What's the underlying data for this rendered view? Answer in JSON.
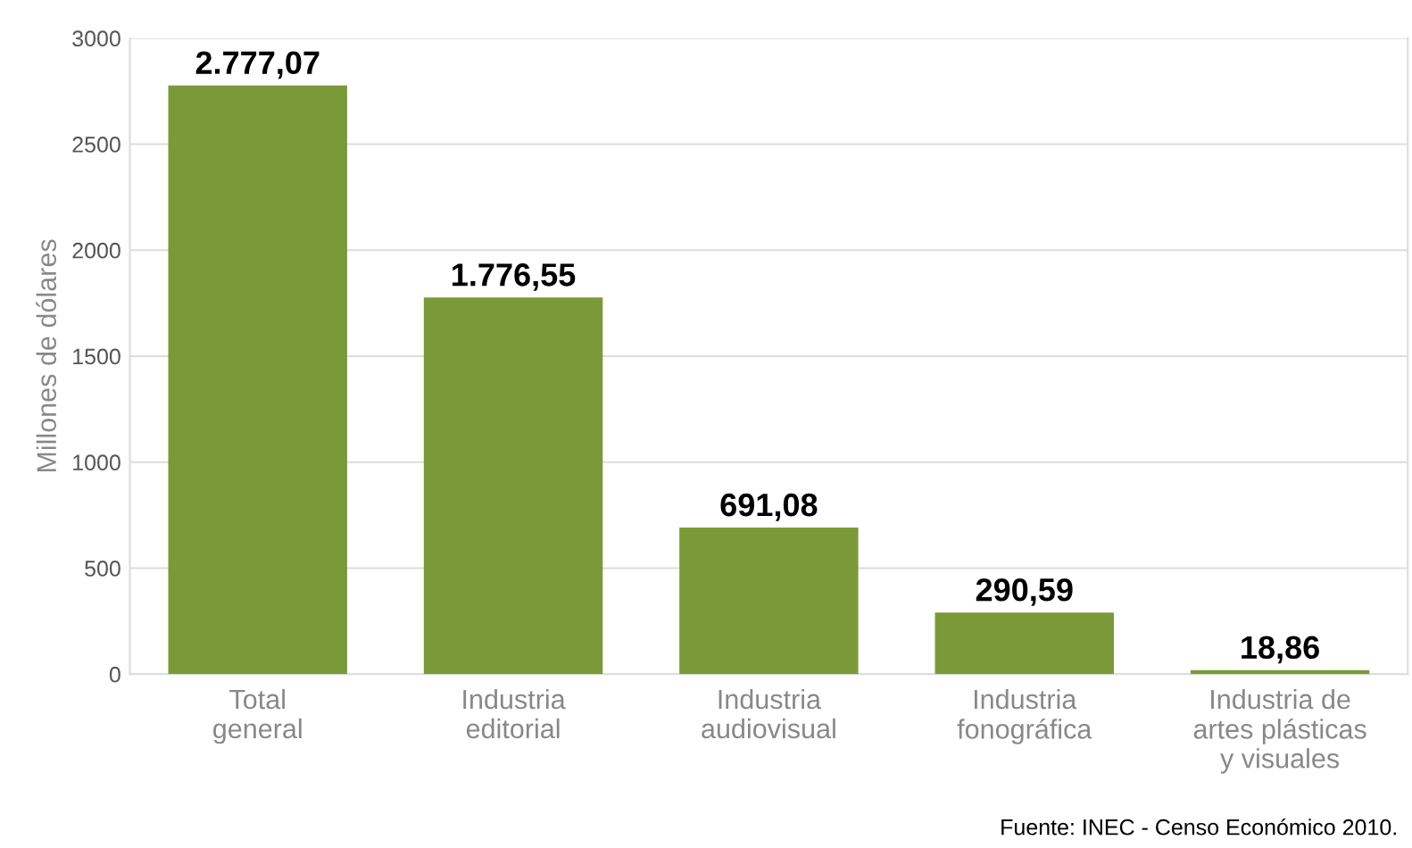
{
  "chart_data": {
    "type": "bar",
    "ylabel": "Millones de dólares",
    "categories": [
      "Total\ngeneral",
      "Industria\neditorial",
      "Industria\naudiovisual",
      "Industria\nfonográfica",
      "Industria de\nartes plásticas\ny visuales"
    ],
    "values": [
      2777.07,
      1776.55,
      691.08,
      290.59,
      18.86
    ],
    "value_labels": [
      "2.777,07",
      "1.776,55",
      "691,08",
      "290,59",
      "18,86"
    ],
    "color": "#7a9a3a",
    "ylim": [
      0,
      3000
    ],
    "yticks": [
      0,
      500,
      1000,
      1500,
      2000,
      2500,
      3000
    ],
    "grid": "y",
    "annotations": [
      "Fuente: INEC - Censo Económico 2010."
    ]
  }
}
